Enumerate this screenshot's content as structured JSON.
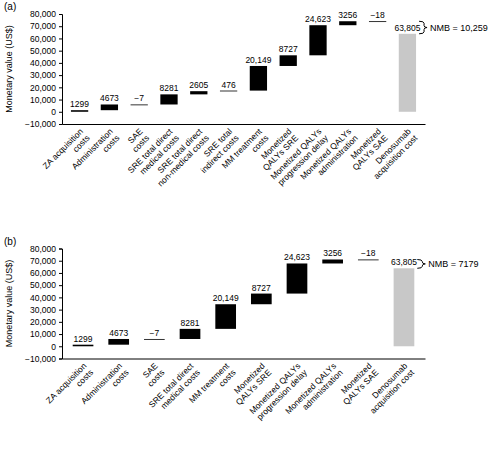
{
  "chart_data": [
    {
      "type": "waterfall",
      "title": "(a)",
      "ylabel": "Monetary value (US$)",
      "categories": [
        "ZA acquisition costs",
        "Administration costs",
        "SAE costs",
        "SRE total direct medical costs",
        "SRE total direct non-medical costs",
        "SRE total indirect costs",
        "MM treatment costs",
        "Monetized QALYs SRE",
        "Monetized QALYs progression delay",
        "Monetized QALYs administration",
        "Monetized QALYs SAE",
        "Denosumab acquisition cost"
      ],
      "values": [
        1299,
        4673,
        -7,
        8281,
        2605,
        476,
        20149,
        8727,
        24623,
        3256,
        -18,
        63805
      ],
      "value_labels": [
        "1299",
        "4673",
        "−7",
        "8281",
        "2605",
        "476",
        "20,149",
        "8727",
        "24,623",
        "3256",
        "−18",
        "63,805"
      ],
      "data_labels": true,
      "colors": [
        "#000000",
        "#000000",
        "#000000",
        "#000000",
        "#000000",
        "#000000",
        "#000000",
        "#000000",
        "#000000",
        "#000000",
        "#000000",
        "#c8c8c8"
      ],
      "ylim": [
        -10000,
        80000
      ],
      "yticks": [
        {
          "value": -10000,
          "label": "−10,000"
        },
        0,
        {
          "value": 10000,
          "label": "10,000"
        },
        {
          "value": 20000,
          "label": "20,000"
        },
        {
          "value": 30000,
          "label": "30,000"
        },
        {
          "value": 40000,
          "label": "40,000"
        },
        {
          "value": 50000,
          "label": "50,000"
        },
        {
          "value": 60000,
          "label": "60,000"
        },
        {
          "value": 70000,
          "label": "70,000"
        },
        {
          "value": 80000,
          "label": "80,000"
        }
      ],
      "annotation": "NMB = 10,259"
    },
    {
      "type": "waterfall",
      "title": "(b)",
      "ylabel": "Monetary value (US$)",
      "categories": [
        "ZA acquisition costs",
        "Administration costs",
        "SAE costs",
        "SRE total direct medical costs",
        "MM treatment costs",
        "Monetized QALYs SRE",
        "Monetized QALYs progression delay",
        "Monetized QALYs administration",
        "Monetized QALYs SAE",
        "Denosumab acquisition cost"
      ],
      "values": [
        1299,
        4673,
        -7,
        8281,
        20149,
        8727,
        24623,
        3256,
        -18,
        63805
      ],
      "value_labels": [
        "1299",
        "4673",
        "−7",
        "8281",
        "20,149",
        "8727",
        "24,623",
        "3256",
        "−18",
        "63,805"
      ],
      "data_labels": true,
      "colors": [
        "#000000",
        "#000000",
        "#000000",
        "#000000",
        "#000000",
        "#000000",
        "#000000",
        "#000000",
        "#000000",
        "#c8c8c8"
      ],
      "ylim": [
        -10000,
        80000
      ],
      "yticks": [
        {
          "value": -10000,
          "label": "−10,000"
        },
        0,
        {
          "value": 10000,
          "label": "10,000"
        },
        {
          "value": 20000,
          "label": "20,000"
        },
        {
          "value": 30000,
          "label": "30,000"
        },
        {
          "value": 40000,
          "label": "40,000"
        },
        {
          "value": 50000,
          "label": "50,000"
        },
        {
          "value": 60000,
          "label": "60,000"
        },
        {
          "value": 70000,
          "label": "70,000"
        },
        {
          "value": 80000,
          "label": "80,000"
        }
      ],
      "annotation": "NMB = 7179"
    }
  ]
}
